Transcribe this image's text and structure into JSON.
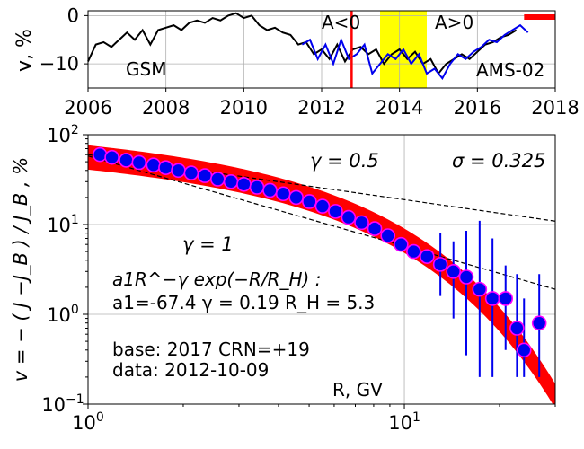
{
  "colors": {
    "gsm": "#000000",
    "ams": "#0000ee",
    "marker_edge": "#ff00ff",
    "fit": "#ff0000",
    "shade": "#ffff00"
  },
  "top": {
    "ylabel": "v, %",
    "xlim": [
      2006,
      2018
    ],
    "ylim": [
      -15,
      1
    ],
    "xticks": [
      "2006",
      "2008",
      "2010",
      "2012",
      "2014",
      "2016",
      "2018"
    ],
    "yticks": [
      "0",
      "−10"
    ],
    "label_gsm": "GSM",
    "label_ams": "AMS-02",
    "label_aneg": "A<0",
    "label_apos": "A>0",
    "vline_year": 2012.77,
    "shade": [
      2013.5,
      2014.7
    ],
    "bar_segment": [
      2017.2,
      2018.0,
      -0.3
    ],
    "gsm_series": [
      [
        2006.0,
        -9.5
      ],
      [
        2006.2,
        -6
      ],
      [
        2006.4,
        -5.5
      ],
      [
        2006.6,
        -6.5
      ],
      [
        2006.8,
        -5
      ],
      [
        2007.0,
        -3.5
      ],
      [
        2007.2,
        -5
      ],
      [
        2007.4,
        -3
      ],
      [
        2007.6,
        -6
      ],
      [
        2007.8,
        -3
      ],
      [
        2008.0,
        -2.5
      ],
      [
        2008.2,
        -2
      ],
      [
        2008.4,
        -3
      ],
      [
        2008.6,
        -1.5
      ],
      [
        2008.8,
        -1
      ],
      [
        2009.0,
        -1.5
      ],
      [
        2009.2,
        -0.5
      ],
      [
        2009.4,
        -1
      ],
      [
        2009.6,
        0
      ],
      [
        2009.8,
        0.5
      ],
      [
        2010.0,
        -0.5
      ],
      [
        2010.2,
        0
      ],
      [
        2010.4,
        -2
      ],
      [
        2010.6,
        -3
      ],
      [
        2010.8,
        -2.5
      ],
      [
        2011.0,
        -3.5
      ],
      [
        2011.2,
        -4
      ],
      [
        2011.4,
        -6
      ],
      [
        2011.6,
        -5.5
      ],
      [
        2011.8,
        -8
      ],
      [
        2012.0,
        -7
      ],
      [
        2012.2,
        -9
      ],
      [
        2012.4,
        -6
      ],
      [
        2012.6,
        -9.5
      ],
      [
        2012.8,
        -7
      ],
      [
        2013.0,
        -6.5
      ],
      [
        2013.2,
        -8
      ],
      [
        2013.4,
        -7
      ],
      [
        2013.6,
        -10
      ],
      [
        2013.8,
        -8
      ],
      [
        2014.0,
        -7
      ],
      [
        2014.2,
        -9
      ],
      [
        2014.4,
        -7.5
      ],
      [
        2014.6,
        -10
      ],
      [
        2014.8,
        -9
      ],
      [
        2015.0,
        -12
      ],
      [
        2015.2,
        -10
      ],
      [
        2015.4,
        -9
      ],
      [
        2015.6,
        -8
      ],
      [
        2015.8,
        -9
      ],
      [
        2016.0,
        -7.5
      ],
      [
        2016.2,
        -6
      ],
      [
        2016.4,
        -5.5
      ],
      [
        2016.6,
        -4.5
      ],
      [
        2016.8,
        -4
      ],
      [
        2017.0,
        -3
      ]
    ],
    "ams_series": [
      [
        2011.5,
        -6
      ],
      [
        2011.7,
        -5
      ],
      [
        2011.9,
        -9
      ],
      [
        2012.1,
        -6
      ],
      [
        2012.3,
        -10
      ],
      [
        2012.5,
        -5
      ],
      [
        2012.7,
        -9
      ],
      [
        2012.9,
        -8
      ],
      [
        2013.1,
        -6
      ],
      [
        2013.3,
        -12
      ],
      [
        2013.5,
        -10
      ],
      [
        2013.7,
        -8
      ],
      [
        2013.9,
        -9
      ],
      [
        2014.1,
        -7
      ],
      [
        2014.3,
        -10
      ],
      [
        2014.5,
        -8
      ],
      [
        2014.7,
        -12
      ],
      [
        2014.9,
        -11
      ],
      [
        2015.1,
        -13
      ],
      [
        2015.3,
        -10
      ],
      [
        2015.5,
        -8
      ],
      [
        2015.7,
        -9
      ],
      [
        2015.9,
        -7.5
      ],
      [
        2016.1,
        -6.5
      ],
      [
        2016.3,
        -5
      ],
      [
        2016.5,
        -5.5
      ],
      [
        2016.7,
        -4
      ],
      [
        2016.9,
        -3
      ],
      [
        2017.1,
        -2
      ],
      [
        2017.3,
        -3.5
      ]
    ]
  },
  "chart_data": {
    "type": "scatter",
    "xlabel": "R, GV",
    "ylabel": "v = − ( J −J_B ) / J_B , %",
    "xlim": [
      1,
      30
    ],
    "ylim": [
      0.1,
      100
    ],
    "xscale": "log",
    "yscale": "log",
    "grid": true,
    "xticks": [
      "10^0",
      "10^1"
    ],
    "yticks": [
      "10^−1",
      "10^0",
      "10^1",
      "10^2"
    ],
    "gamma_half_label": "γ = 0.5",
    "gamma_one_label": "γ = 1",
    "sigma_label": "σ = 0.325",
    "formula": "a1R^−γ exp(−R/R_H) :",
    "params": "a1=-67.4  γ = 0.19  R_H =  5.3",
    "base_line": "base: 2017   CRN=+19",
    "data_line": "data: 2012-10-09",
    "points": [
      {
        "x": 1.09,
        "y": 60
      },
      {
        "x": 1.19,
        "y": 56
      },
      {
        "x": 1.32,
        "y": 52
      },
      {
        "x": 1.45,
        "y": 49
      },
      {
        "x": 1.61,
        "y": 46
      },
      {
        "x": 1.76,
        "y": 43
      },
      {
        "x": 1.93,
        "y": 40
      },
      {
        "x": 2.12,
        "y": 37.5
      },
      {
        "x": 2.34,
        "y": 35
      },
      {
        "x": 2.57,
        "y": 32
      },
      {
        "x": 2.83,
        "y": 30
      },
      {
        "x": 3.11,
        "y": 28
      },
      {
        "x": 3.42,
        "y": 26
      },
      {
        "x": 3.76,
        "y": 24
      },
      {
        "x": 4.14,
        "y": 22
      },
      {
        "x": 4.55,
        "y": 20
      },
      {
        "x": 5.01,
        "y": 18
      },
      {
        "x": 5.51,
        "y": 16
      },
      {
        "x": 6.06,
        "y": 14
      },
      {
        "x": 6.66,
        "y": 12
      },
      {
        "x": 7.33,
        "y": 10.5
      },
      {
        "x": 8.06,
        "y": 9
      },
      {
        "x": 8.87,
        "y": 7.5
      },
      {
        "x": 9.76,
        "y": 6
      },
      {
        "x": 10.7,
        "y": 5
      },
      {
        "x": 11.8,
        "y": 4.4
      },
      {
        "x": 13.0,
        "y": 3.6
      },
      {
        "x": 14.3,
        "y": 3.0
      },
      {
        "x": 15.7,
        "y": 2.6
      },
      {
        "x": 17.3,
        "y": 1.9
      },
      {
        "x": 19.0,
        "y": 1.5
      },
      {
        "x": 20.9,
        "y": 1.5
      },
      {
        "x": 22.7,
        "y": 0.7
      },
      {
        "x": 23.9,
        "y": 0.4
      },
      {
        "x": 26.7,
        "y": 0.8
      }
    ],
    "error_bars": [
      {
        "x": 13.0,
        "lo": 1.6,
        "hi": 8.0
      },
      {
        "x": 14.3,
        "lo": 0.9,
        "hi": 6.5
      },
      {
        "x": 15.7,
        "lo": 0.35,
        "hi": 8.5
      },
      {
        "x": 17.3,
        "lo": 0.2,
        "hi": 11
      },
      {
        "x": 19.0,
        "lo": 0.2,
        "hi": 7
      },
      {
        "x": 20.9,
        "lo": 0.4,
        "hi": 3.5
      },
      {
        "x": 22.7,
        "lo": 0.2,
        "hi": 2.8
      },
      {
        "x": 23.9,
        "lo": 0.2,
        "hi": 1.5
      },
      {
        "x": 26.7,
        "lo": 0.2,
        "hi": 2.8
      }
    ],
    "fit_curve": {
      "a1": -67.4,
      "gamma": 0.19,
      "RH": 5.3,
      "sigma": 0.325
    },
    "ref_line_gamma_half": {
      "x1": 1.0,
      "y1": 60,
      "x2": 30,
      "y2": 10.9
    },
    "ref_line_gamma_one": {
      "x1": 1.0,
      "y1": 58,
      "x2": 30,
      "y2": 1.9
    }
  }
}
